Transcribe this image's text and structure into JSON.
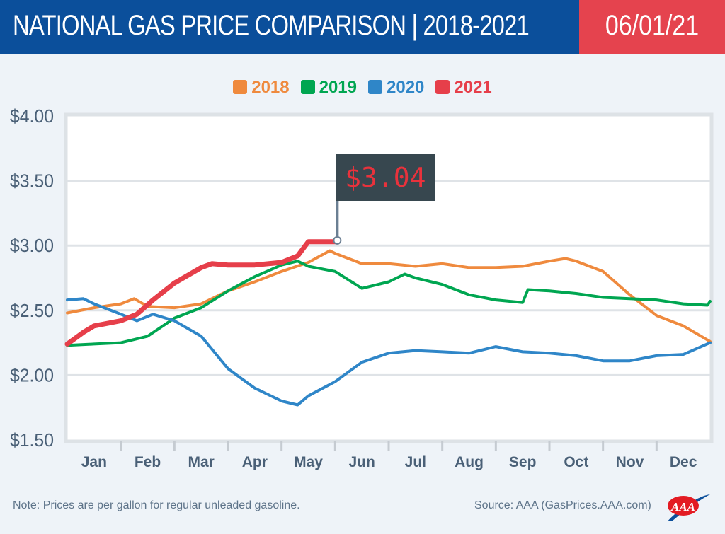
{
  "header": {
    "title": "NATIONAL GAS PRICE COMPARISON | 2018-2021",
    "date": "06/01/21"
  },
  "footer": {
    "note": "Note: Prices are per gallon for regular unleaded gasoline.",
    "source": "Source: AAA (GasPrices.AAA.com)",
    "logo_text": "AAA"
  },
  "chart_data": {
    "type": "line",
    "title": "NATIONAL GAS PRICE COMPARISON | 2018-2021",
    "xlabel": "",
    "ylabel": "",
    "ylim": [
      1.5,
      4.0
    ],
    "xlim_months": [
      0,
      12
    ],
    "yticks": [
      "$4.00",
      "$3.50",
      "$3.00",
      "$2.50",
      "$2.00",
      "$1.50"
    ],
    "ytick_values": [
      4.0,
      3.5,
      3.0,
      2.5,
      2.0,
      1.5
    ],
    "categories": [
      "Jan",
      "Feb",
      "Mar",
      "Apr",
      "May",
      "Jun",
      "Jul",
      "Aug",
      "Sep",
      "Oct",
      "Nov",
      "Dec"
    ],
    "grid": true,
    "legend_position": "top-center",
    "annotation": {
      "label": "$3.04",
      "series": "2021",
      "x": 5.04,
      "y": 3.04
    },
    "series": [
      {
        "name": "2018",
        "color": "#ef8a3e",
        "x": [
          0,
          0.5,
          1,
          1.25,
          1.5,
          2,
          2.5,
          3,
          3.5,
          4,
          4.5,
          4.9,
          5,
          5.5,
          6,
          6.5,
          7,
          7.5,
          8,
          8.5,
          9,
          9.3,
          9.5,
          10,
          10.5,
          11,
          11.5,
          12
        ],
        "y": [
          2.48,
          2.52,
          2.55,
          2.59,
          2.53,
          2.52,
          2.55,
          2.65,
          2.72,
          2.8,
          2.87,
          2.96,
          2.94,
          2.86,
          2.86,
          2.84,
          2.86,
          2.83,
          2.83,
          2.84,
          2.88,
          2.9,
          2.88,
          2.8,
          2.62,
          2.46,
          2.38,
          2.26
        ]
      },
      {
        "name": "2019",
        "color": "#00a651",
        "x": [
          0,
          0.5,
          1,
          1.5,
          2,
          2.5,
          3,
          3.5,
          4,
          4.3,
          4.5,
          5,
          5.5,
          6,
          6.3,
          6.5,
          7,
          7.5,
          8,
          8.5,
          8.6,
          9,
          9.5,
          10,
          10.5,
          11,
          11.5,
          11.95,
          12
        ],
        "y": [
          2.23,
          2.24,
          2.25,
          2.3,
          2.44,
          2.52,
          2.65,
          2.76,
          2.85,
          2.88,
          2.84,
          2.8,
          2.67,
          2.72,
          2.78,
          2.75,
          2.7,
          2.62,
          2.58,
          2.56,
          2.66,
          2.65,
          2.63,
          2.6,
          2.59,
          2.58,
          2.55,
          2.54,
          2.57
        ]
      },
      {
        "name": "2020",
        "color": "#2f86c8",
        "x": [
          0,
          0.3,
          0.5,
          1,
          1.3,
          1.6,
          2,
          2.5,
          3,
          3.5,
          4,
          4.3,
          4.5,
          5,
          5.5,
          6,
          6.5,
          7,
          7.5,
          8,
          8.5,
          9,
          9.5,
          10,
          10.5,
          11,
          11.5,
          12
        ],
        "y": [
          2.58,
          2.59,
          2.55,
          2.47,
          2.42,
          2.47,
          2.42,
          2.3,
          2.05,
          1.9,
          1.8,
          1.77,
          1.84,
          1.95,
          2.1,
          2.17,
          2.19,
          2.18,
          2.17,
          2.22,
          2.18,
          2.17,
          2.15,
          2.11,
          2.11,
          2.15,
          2.16,
          2.25
        ]
      },
      {
        "name": "2021",
        "color": "#e63f4a",
        "x": [
          0,
          0.3,
          0.5,
          1,
          1.3,
          1.6,
          2,
          2.5,
          2.7,
          3,
          3.5,
          4,
          4.3,
          4.5,
          5,
          5.04
        ],
        "y": [
          2.24,
          2.33,
          2.38,
          2.42,
          2.47,
          2.58,
          2.71,
          2.83,
          2.86,
          2.85,
          2.85,
          2.87,
          2.92,
          3.03,
          3.03,
          3.04
        ]
      }
    ]
  }
}
